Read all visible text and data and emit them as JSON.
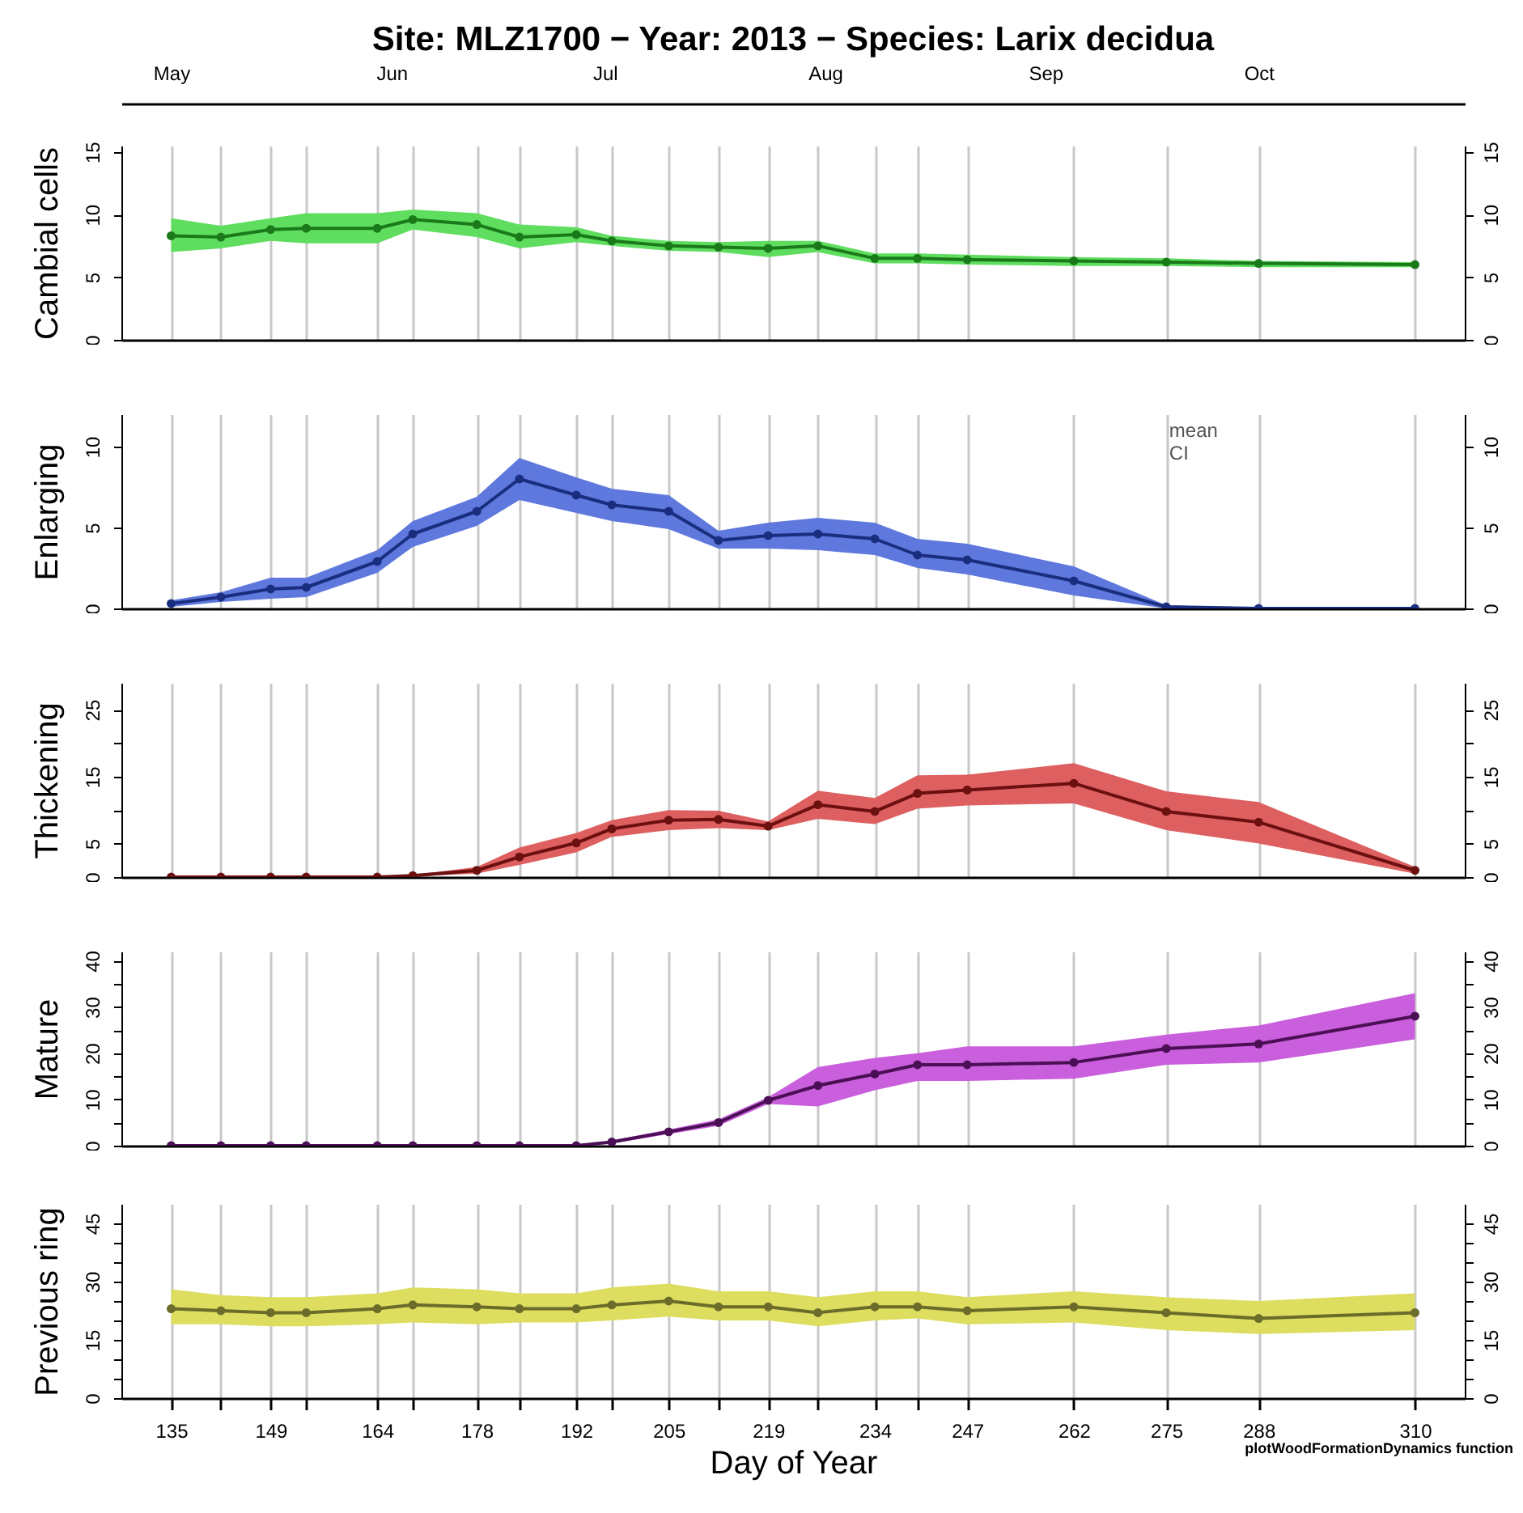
{
  "chart_data": [
    {
      "type": "line",
      "title": "Site: MLZ1700 − Year: 2013 − Species: Larix decidua",
      "ylabel": "Cambial cells",
      "x": [
        135,
        142,
        149,
        154,
        164,
        169,
        178,
        184,
        192,
        197,
        205,
        212,
        219,
        226,
        234,
        240,
        247,
        262,
        275,
        288,
        310
      ],
      "series": [
        {
          "color": "#1a7a1a",
          "values": [
            8.3,
            8.2,
            8.8,
            8.9,
            8.9,
            9.6,
            9.2,
            8.2,
            8.4,
            7.9,
            7.5,
            7.4,
            7.3,
            7.5,
            6.5,
            6.5,
            6.4,
            6.3,
            6.2,
            6.1,
            6.0
          ],
          "lower": [
            7.0,
            7.3,
            7.9,
            7.7,
            7.7,
            8.8,
            8.2,
            7.3,
            7.8,
            7.5,
            7.1,
            7.0,
            6.6,
            7.0,
            6.1,
            6.1,
            6.0,
            5.9,
            5.9,
            5.8,
            5.8
          ],
          "upper": [
            9.7,
            9.1,
            9.7,
            10.1,
            10.1,
            10.4,
            10.1,
            9.2,
            9.0,
            8.3,
            7.9,
            7.8,
            7.9,
            7.9,
            6.9,
            6.9,
            6.8,
            6.6,
            6.5,
            6.3,
            6.2
          ]
        }
      ],
      "xlim": [
        128,
        317
      ],
      "xticks": [
        135,
        {
          "value": 142,
          "label": null
        },
        149,
        {
          "value": 154,
          "label": null
        },
        164,
        {
          "value": 169,
          "label": null
        },
        178,
        {
          "value": 184,
          "label": null
        },
        192,
        {
          "value": 197,
          "label": null
        },
        205,
        {
          "value": 212,
          "label": null
        },
        219,
        {
          "value": 226,
          "label": null
        },
        234,
        {
          "value": 240,
          "label": null
        },
        247,
        262,
        275,
        288,
        310
      ],
      "x2lim": [
        "--05-08",
        "--11-13"
      ],
      "x2ticks": [
        {
          "value": "--05-15",
          "label": "May"
        },
        {
          "value": "--06-15",
          "label": "Jun"
        },
        {
          "value": "--07-15",
          "label": "Jul"
        },
        {
          "value": "--08-15",
          "label": "Aug"
        },
        {
          "value": "--09-15",
          "label": "Sep"
        },
        {
          "value": "--10-15",
          "label": "Oct"
        }
      ],
      "ylim": [
        0,
        15.5
      ],
      "yticks": [
        0,
        5,
        10,
        15
      ],
      "y2lim": [
        0,
        15.5
      ],
      "y2ticks": [
        0,
        5,
        10,
        15
      ],
      "grid": "x",
      "marker": "circle",
      "tick_labels": "y"
    },
    {
      "type": "line",
      "ylabel": "Enlarging",
      "x": [
        135,
        142,
        149,
        154,
        164,
        169,
        178,
        184,
        192,
        197,
        205,
        212,
        219,
        226,
        234,
        240,
        247,
        262,
        275,
        288,
        310
      ],
      "series": [
        {
          "color": "#1a2e80",
          "values": [
            0.3,
            0.7,
            1.2,
            1.3,
            2.9,
            4.6,
            6.0,
            8.0,
            7.0,
            6.4,
            6.0,
            4.2,
            4.5,
            4.6,
            4.3,
            3.3,
            3.0,
            1.7,
            0.1,
            0,
            0
          ],
          "lower": [
            0.1,
            0.4,
            0.6,
            0.7,
            2.2,
            3.8,
            5.1,
            6.7,
            5.9,
            5.4,
            4.9,
            3.7,
            3.7,
            3.6,
            3.3,
            2.5,
            2.1,
            0.8,
            0,
            0,
            0
          ],
          "upper": [
            0.5,
            1.0,
            1.9,
            1.9,
            3.6,
            5.4,
            6.9,
            9.3,
            8.1,
            7.4,
            7.0,
            4.8,
            5.3,
            5.6,
            5.3,
            4.3,
            4.0,
            2.6,
            0.2,
            0,
            0
          ]
        }
      ],
      "xlim": [
        128,
        317
      ],
      "xticks": [
        135,
        {
          "value": 142,
          "label": null
        },
        149,
        {
          "value": 154,
          "label": null
        },
        164,
        {
          "value": 169,
          "label": null
        },
        178,
        {
          "value": 184,
          "label": null
        },
        192,
        {
          "value": 197,
          "label": null
        },
        205,
        {
          "value": 212,
          "label": null
        },
        219,
        {
          "value": 226,
          "label": null
        },
        234,
        {
          "value": 240,
          "label": null
        },
        247,
        262,
        275,
        288,
        310
      ],
      "ylim": [
        0,
        12
      ],
      "yticks": [
        0,
        5,
        10
      ],
      "y2lim": [
        0,
        12
      ],
      "y2ticks": [
        0,
        5,
        10
      ],
      "grid": "x",
      "marker": "circle",
      "tick_labels": "y",
      "annotations": [
        "mean",
        "CI"
      ]
    },
    {
      "type": "line",
      "ylabel": "Thickening",
      "x": [
        135,
        142,
        149,
        154,
        164,
        169,
        178,
        184,
        192,
        197,
        205,
        212,
        219,
        226,
        234,
        240,
        247,
        262,
        275,
        288,
        310
      ],
      "series": [
        {
          "color": "#6b0f0f",
          "values": [
            0,
            0,
            0,
            0,
            0,
            0.2,
            1.0,
            3.0,
            5.1,
            7.2,
            8.5,
            8.6,
            7.6,
            10.8,
            9.8,
            12.5,
            13.0,
            14.0,
            9.8,
            8.2,
            1.0
          ],
          "lower": [
            0,
            0,
            0,
            0,
            0,
            0.1,
            0.5,
            1.8,
            3.7,
            6.0,
            7.0,
            7.3,
            7.0,
            8.7,
            7.9,
            10.2,
            10.7,
            11.0,
            7.0,
            5.0,
            0.5
          ],
          "upper": [
            0,
            0,
            0,
            0,
            0,
            0.3,
            1.5,
            4.4,
            6.6,
            8.5,
            10.0,
            9.9,
            8.3,
            12.9,
            11.8,
            15.2,
            15.3,
            17.0,
            12.8,
            11.2,
            1.5
          ]
        }
      ],
      "xlim": [
        128,
        317
      ],
      "xticks": [
        135,
        {
          "value": 142,
          "label": null
        },
        149,
        {
          "value": 154,
          "label": null
        },
        164,
        {
          "value": 169,
          "label": null
        },
        178,
        {
          "value": 184,
          "label": null
        },
        192,
        {
          "value": 197,
          "label": null
        },
        205,
        {
          "value": 212,
          "label": null
        },
        219,
        {
          "value": 226,
          "label": null
        },
        234,
        {
          "value": 240,
          "label": null
        },
        247,
        262,
        275,
        288,
        310
      ],
      "ylim": [
        0,
        29
      ],
      "yticks": [
        0,
        5,
        {
          "value": 10,
          "label": null
        },
        15,
        {
          "value": 20,
          "label": null
        },
        25
      ],
      "y2lim": [
        0,
        29
      ],
      "y2ticks": [
        0,
        5,
        {
          "value": 10,
          "label": null
        },
        15,
        {
          "value": 20,
          "label": null
        },
        25
      ],
      "grid": "x",
      "marker": "circle",
      "tick_labels": "y"
    },
    {
      "type": "line",
      "ylabel": "Mature",
      "x": [
        135,
        142,
        149,
        154,
        164,
        169,
        178,
        184,
        192,
        197,
        205,
        212,
        219,
        226,
        234,
        240,
        247,
        262,
        275,
        288,
        310
      ],
      "series": [
        {
          "color": "#4a0f55",
          "values": [
            0,
            0,
            0,
            0,
            0,
            0,
            0,
            0,
            0,
            0.8,
            3.0,
            5.0,
            9.8,
            13,
            15.5,
            17.5,
            17.5,
            18,
            21,
            22,
            28
          ],
          "lower": [
            0,
            0,
            0,
            0,
            0,
            0,
            0,
            0,
            0,
            0.5,
            2.5,
            4.3,
            9.0,
            8.5,
            12,
            14,
            14,
            14.5,
            17.5,
            18,
            23
          ],
          "upper": [
            0,
            0,
            0,
            0,
            0,
            0,
            0,
            0,
            0,
            1.1,
            3.5,
            5.7,
            10.5,
            17,
            19,
            20,
            21.5,
            21.5,
            24,
            26,
            33
          ]
        }
      ],
      "xlim": [
        128,
        317
      ],
      "xticks": [
        135,
        {
          "value": 142,
          "label": null
        },
        149,
        {
          "value": 154,
          "label": null
        },
        164,
        {
          "value": 169,
          "label": null
        },
        178,
        {
          "value": 184,
          "label": null
        },
        192,
        {
          "value": 197,
          "label": null
        },
        205,
        {
          "value": 212,
          "label": null
        },
        219,
        {
          "value": 226,
          "label": null
        },
        234,
        {
          "value": 240,
          "label": null
        },
        247,
        262,
        275,
        288,
        310
      ],
      "ylim": [
        0,
        42
      ],
      "yticks": [
        0,
        {
          "value": 5,
          "label": null
        },
        10,
        {
          "value": 15,
          "label": null
        },
        20,
        {
          "value": 25,
          "label": null
        },
        30,
        {
          "value": 35,
          "label": null
        },
        40
      ],
      "y2lim": [
        0,
        42
      ],
      "y2ticks": [
        0,
        {
          "value": 5,
          "label": null
        },
        10,
        {
          "value": 15,
          "label": null
        },
        20,
        {
          "value": 25,
          "label": null
        },
        30,
        {
          "value": 35,
          "label": null
        },
        40
      ],
      "grid": "x",
      "marker": "circle",
      "tick_labels": "y"
    },
    {
      "type": "line",
      "ylabel": "Previous ring",
      "xlabel": "Day of Year",
      "x": [
        135,
        142,
        149,
        154,
        164,
        169,
        178,
        184,
        192,
        197,
        205,
        212,
        219,
        226,
        234,
        240,
        247,
        262,
        275,
        288,
        310
      ],
      "series": [
        {
          "color": "#6b6b2a",
          "values": [
            23,
            22.5,
            22,
            22,
            23,
            24,
            23.5,
            23,
            23,
            24,
            25,
            23.5,
            23.5,
            22,
            23.5,
            23.5,
            22.5,
            23.5,
            22,
            20.5,
            22
          ],
          "lower": [
            19,
            19,
            18.5,
            18.5,
            19,
            19.5,
            19,
            19.5,
            19.5,
            20,
            21,
            20,
            20,
            18.5,
            20,
            20.5,
            19,
            19.5,
            17.5,
            16.5,
            17.5
          ],
          "upper": [
            28,
            26.5,
            26,
            26,
            27,
            28.5,
            28,
            27,
            27,
            28.5,
            29.5,
            27.5,
            27.5,
            26,
            27.5,
            27.5,
            26,
            27.5,
            26,
            25,
            27
          ]
        }
      ],
      "xlim": [
        128,
        317
      ],
      "xticks": [
        135,
        {
          "value": 142,
          "label": null
        },
        149,
        {
          "value": 154,
          "label": null
        },
        164,
        {
          "value": 169,
          "label": null
        },
        178,
        {
          "value": 184,
          "label": null
        },
        192,
        {
          "value": 197,
          "label": null
        },
        205,
        {
          "value": 212,
          "label": null
        },
        219,
        {
          "value": 226,
          "label": null
        },
        234,
        {
          "value": 240,
          "label": null
        },
        247,
        262,
        275,
        288,
        310
      ],
      "ylim": [
        0,
        50
      ],
      "yticks": [
        0,
        {
          "value": 5,
          "label": null
        },
        {
          "value": 10,
          "label": null
        },
        15,
        {
          "value": 20,
          "label": null
        },
        {
          "value": 25,
          "label": null
        },
        30,
        {
          "value": 35,
          "label": null
        },
        {
          "value": 40,
          "label": null
        },
        45
      ],
      "y2lim": [
        0,
        50
      ],
      "y2ticks": [
        0,
        {
          "value": 5,
          "label": null
        },
        {
          "value": 10,
          "label": null
        },
        15,
        {
          "value": 20,
          "label": null
        },
        {
          "value": 25,
          "label": null
        },
        30,
        {
          "value": 35,
          "label": null
        },
        {
          "value": 40,
          "label": null
        },
        45
      ],
      "grid": "x",
      "marker": "circle",
      "annotations": [
        "plotWoodFormationDynamics function"
      ]
    }
  ]
}
